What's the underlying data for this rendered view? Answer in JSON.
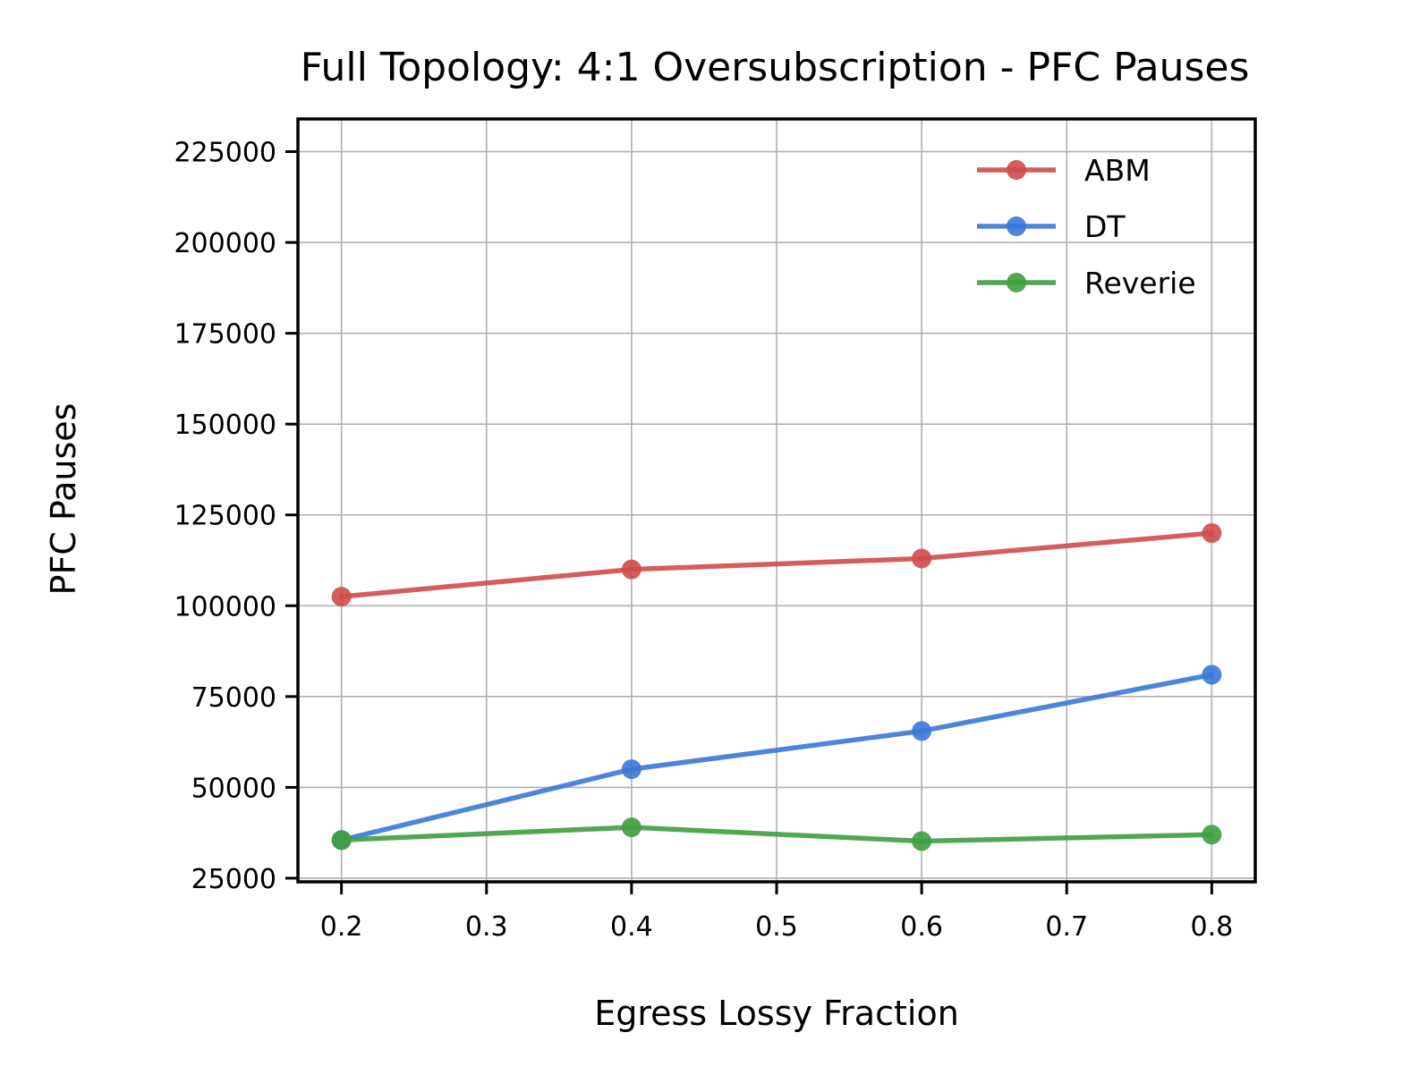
{
  "chart_data": {
    "type": "line",
    "title": "Full Topology: 4:1 Oversubscription - PFC Pauses",
    "xlabel": "Egress Lossy Fraction",
    "ylabel": "PFC Pauses",
    "x": [
      0.2,
      0.4,
      0.6,
      0.8
    ],
    "xticks": [
      "0.2",
      "0.3",
      "0.4",
      "0.5",
      "0.6",
      "0.7",
      "0.8"
    ],
    "yticks": [
      "25000",
      "50000",
      "75000",
      "100000",
      "125000",
      "150000",
      "175000",
      "200000",
      "225000"
    ],
    "xlim": [
      0.17,
      0.83
    ],
    "ylim": [
      24000,
      234000
    ],
    "grid": true,
    "legend_position": "top-right",
    "series": [
      {
        "name": "ABM",
        "color": "#d14b4b",
        "values": [
          102500,
          110000,
          113000,
          120000
        ]
      },
      {
        "name": "DT",
        "color": "#3b78d8",
        "values": [
          35500,
          55000,
          65500,
          81000
        ]
      },
      {
        "name": "Reverie",
        "color": "#3f9e3f",
        "values": [
          35500,
          39000,
          35200,
          37000
        ]
      }
    ]
  }
}
